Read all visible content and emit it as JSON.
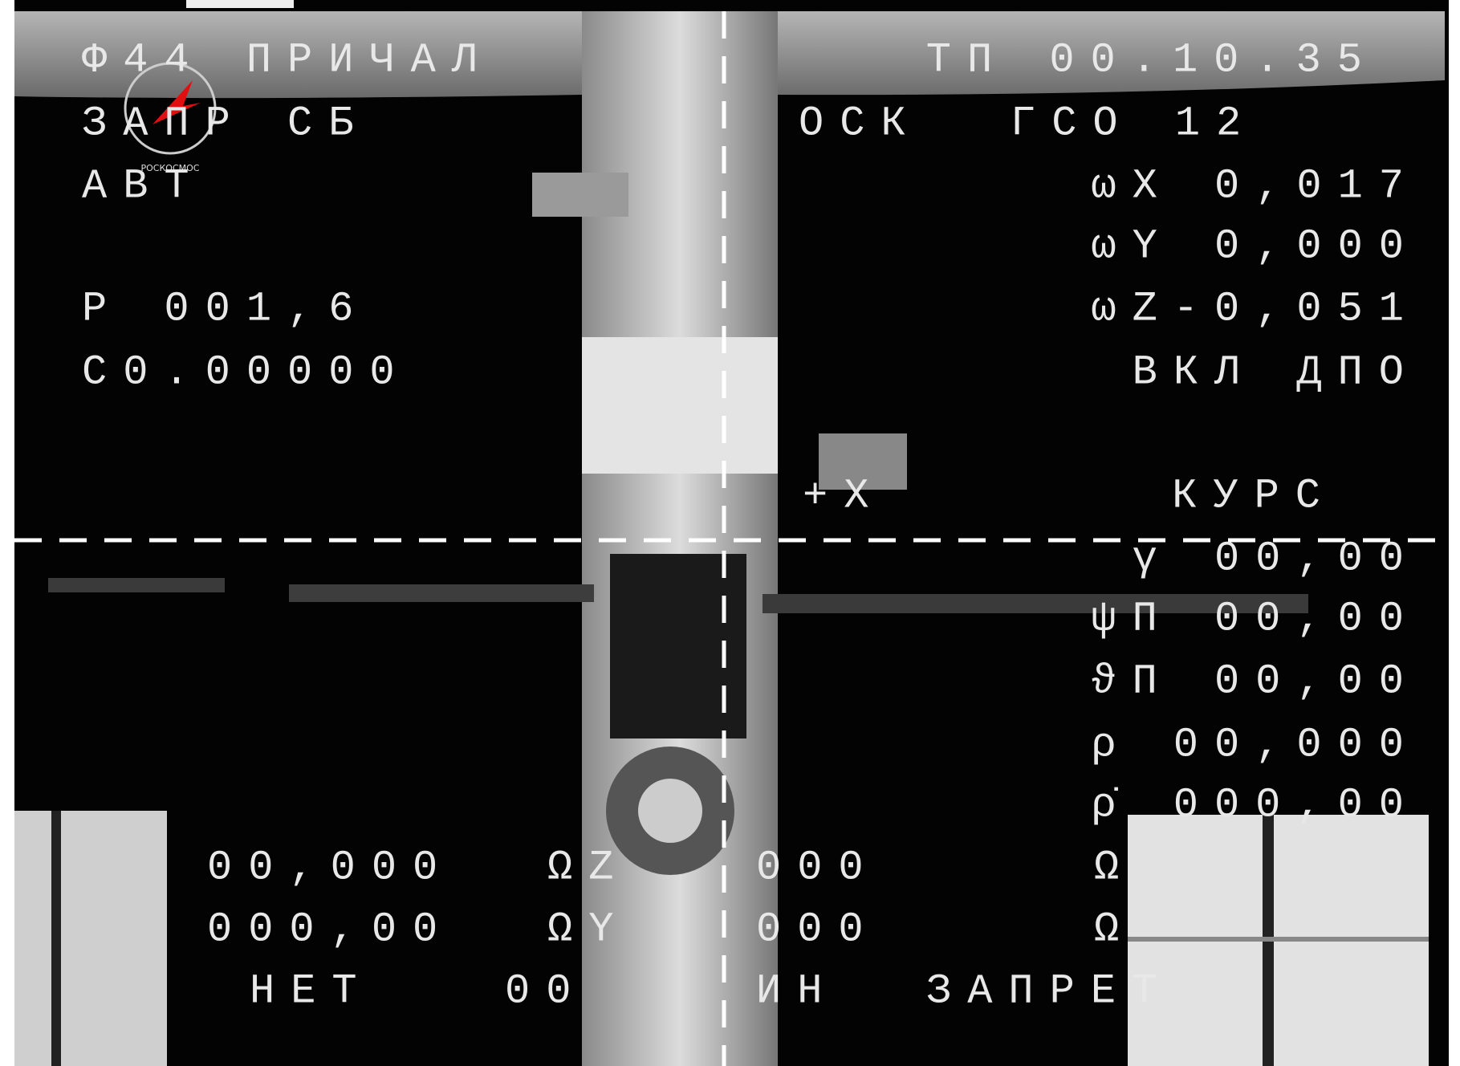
{
  "logo": "РОСКОСМОС",
  "labels": [
    "Ф44 ПРИЧАЛ",
    "ТП 00.10.35",
    "ЗАПР СБ",
    "ОСК",
    "ГСО 12",
    "АВТ",
    "ωX 0,017",
    "ωY 0,000",
    "Р 001,6",
    "ωZ-0,051",
    "С0.00000",
    "ВКЛ ДПО",
    "+X",
    "КУРС",
    "γ 00,00",
    "ψП 00,00",
    "ϑП 00,00",
    "ρ 00,000",
    "ρ̇ 000,00",
    "00,000",
    "ΩZ",
    "000",
    "000,00",
    "ΩY",
    "000",
    "НЕТ",
    "00",
    "ИН",
    "ЗАПРЕТ",
    "Ω",
    "Ω"
  ]
}
